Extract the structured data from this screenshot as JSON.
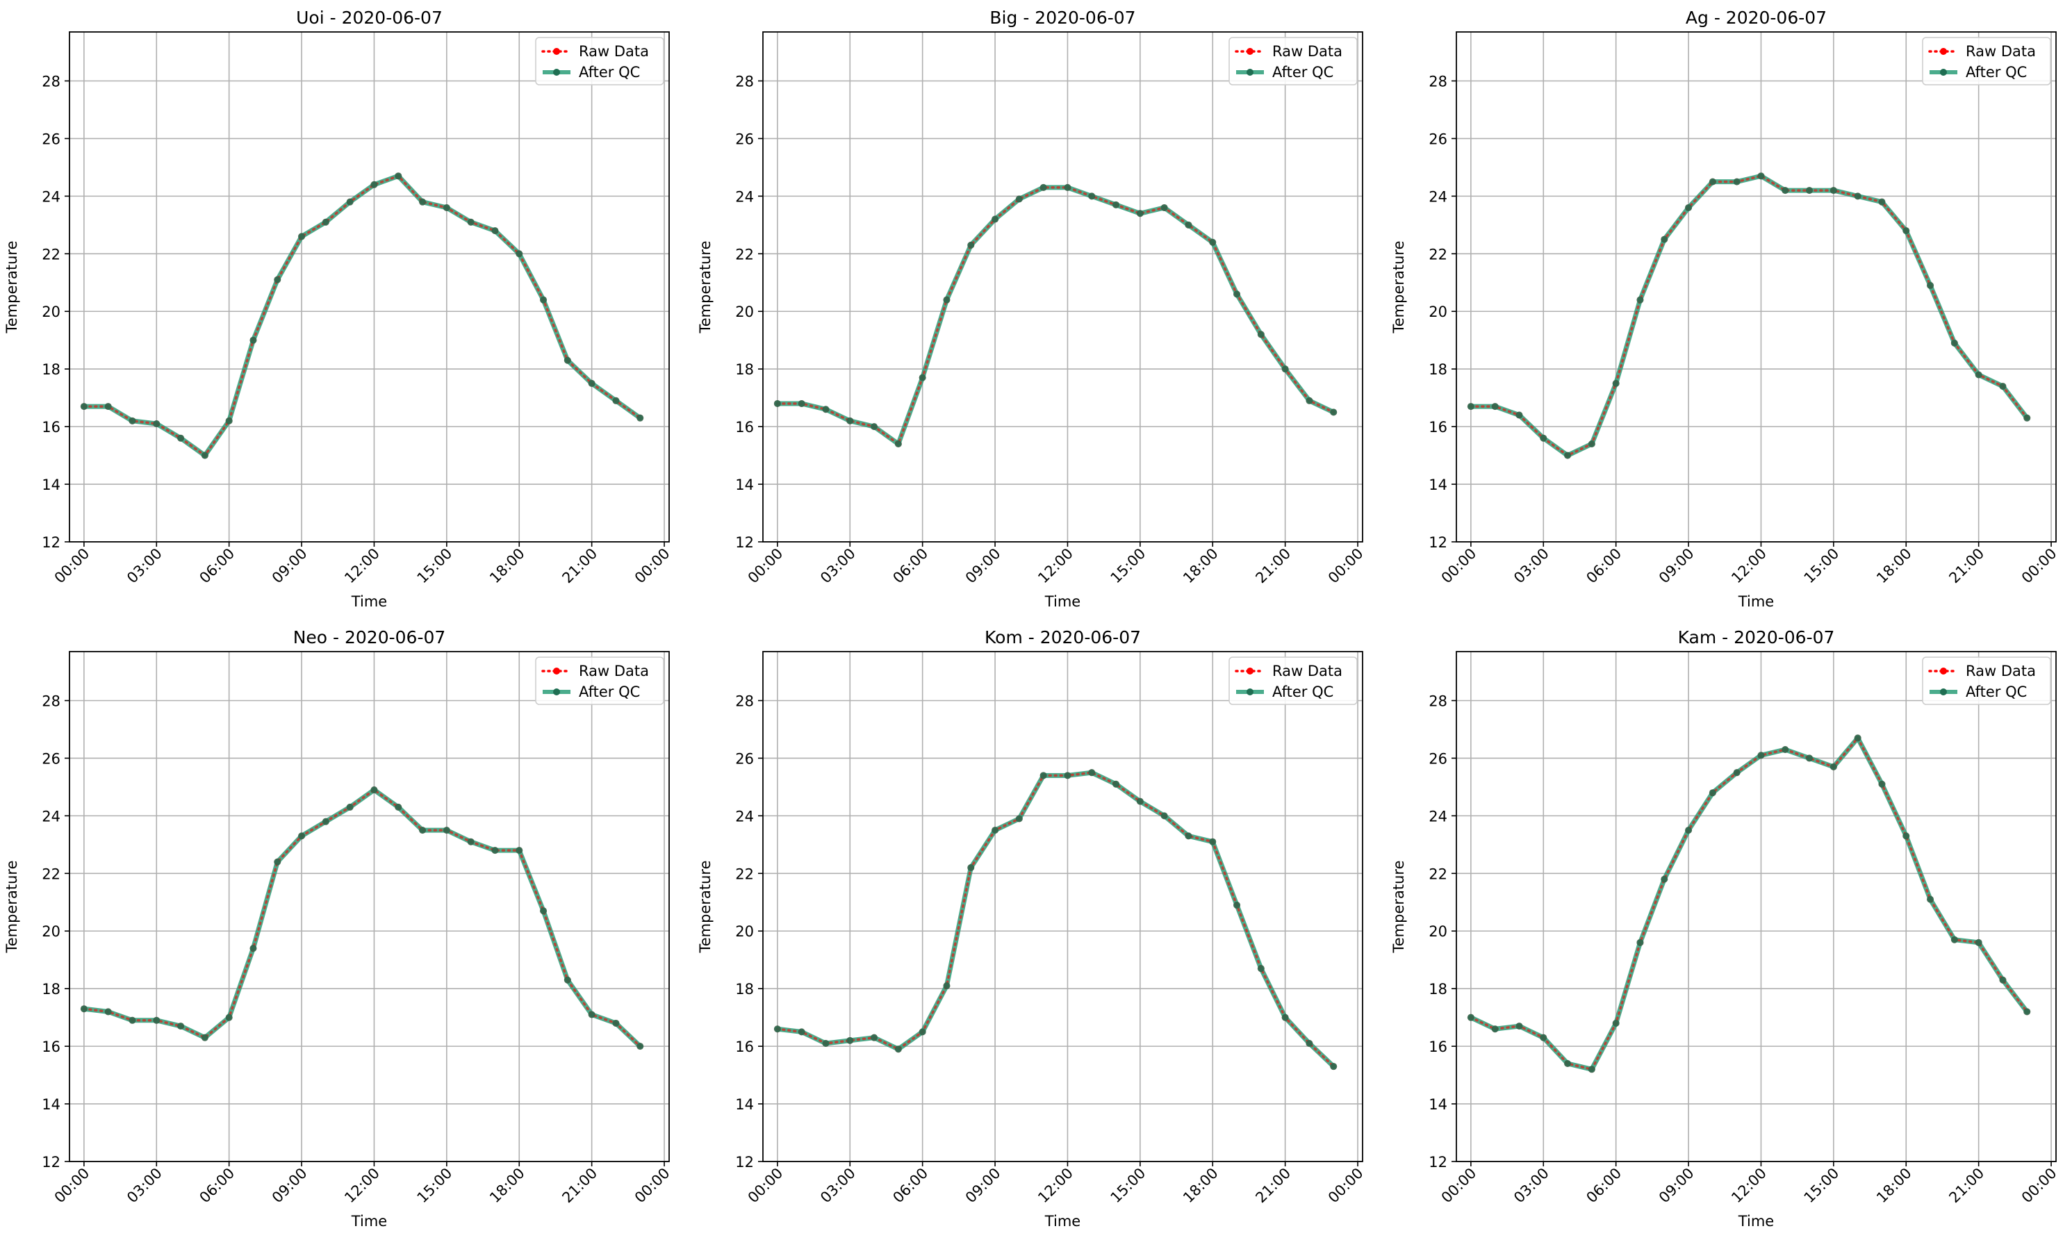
{
  "chart_data": [
    {
      "type": "line",
      "title": "Uoi - 2020-06-07",
      "xlabel": "Time",
      "ylabel": "Temperature",
      "ylim": [
        12,
        29.7
      ],
      "yticks": [
        12,
        14,
        16,
        18,
        20,
        22,
        24,
        26,
        28
      ],
      "xticks": [
        "00:00",
        "03:00",
        "06:00",
        "09:00",
        "12:00",
        "15:00",
        "18:00",
        "21:00",
        "00:00"
      ],
      "grid": true,
      "legend_position": "top-right",
      "x": [
        0,
        1,
        2,
        3,
        4,
        5,
        6,
        7,
        8,
        9,
        10,
        11,
        12,
        13,
        14,
        15,
        16,
        17,
        18,
        19,
        20,
        21,
        22,
        23
      ],
      "series": [
        {
          "name": "Raw Data",
          "color": "#ff0000",
          "values": [
            16.7,
            16.7,
            16.2,
            16.1,
            15.6,
            15.0,
            16.2,
            19.0,
            21.1,
            22.6,
            23.1,
            23.8,
            24.4,
            24.7,
            23.8,
            23.6,
            23.1,
            22.8,
            22.0,
            20.4,
            18.3,
            17.5,
            16.9,
            16.3
          ]
        },
        {
          "name": "After QC",
          "color": "#2a9d78",
          "values": [
            16.7,
            16.7,
            16.2,
            16.1,
            15.6,
            15.0,
            16.2,
            19.0,
            21.1,
            22.6,
            23.1,
            23.8,
            24.4,
            24.7,
            23.8,
            23.6,
            23.1,
            22.8,
            22.0,
            20.4,
            18.3,
            17.5,
            16.9,
            16.3
          ]
        }
      ]
    },
    {
      "type": "line",
      "title": "Big - 2020-06-07",
      "xlabel": "Time",
      "ylabel": "Temperature",
      "ylim": [
        12,
        29.7
      ],
      "yticks": [
        12,
        14,
        16,
        18,
        20,
        22,
        24,
        26,
        28
      ],
      "xticks": [
        "00:00",
        "03:00",
        "06:00",
        "09:00",
        "12:00",
        "15:00",
        "18:00",
        "21:00",
        "00:00"
      ],
      "grid": true,
      "legend_position": "top-right",
      "x": [
        0,
        1,
        2,
        3,
        4,
        5,
        6,
        7,
        8,
        9,
        10,
        11,
        12,
        13,
        14,
        15,
        16,
        17,
        18,
        19,
        20,
        21,
        22,
        23
      ],
      "series": [
        {
          "name": "Raw Data",
          "color": "#ff0000",
          "values": [
            16.8,
            16.8,
            16.6,
            16.2,
            16.0,
            15.4,
            17.7,
            20.4,
            22.3,
            23.2,
            23.9,
            24.3,
            24.3,
            24.0,
            23.7,
            23.4,
            23.6,
            23.0,
            22.4,
            20.6,
            19.2,
            18.0,
            16.9,
            16.5
          ]
        },
        {
          "name": "After QC",
          "color": "#2a9d78",
          "values": [
            16.8,
            16.8,
            16.6,
            16.2,
            16.0,
            15.4,
            17.7,
            20.4,
            22.3,
            23.2,
            23.9,
            24.3,
            24.3,
            24.0,
            23.7,
            23.4,
            23.6,
            23.0,
            22.4,
            20.6,
            19.2,
            18.0,
            16.9,
            16.5
          ]
        }
      ]
    },
    {
      "type": "line",
      "title": "Ag - 2020-06-07",
      "xlabel": "Time",
      "ylabel": "Temperature",
      "ylim": [
        12,
        29.7
      ],
      "yticks": [
        12,
        14,
        16,
        18,
        20,
        22,
        24,
        26,
        28
      ],
      "xticks": [
        "00:00",
        "03:00",
        "06:00",
        "09:00",
        "12:00",
        "15:00",
        "18:00",
        "21:00",
        "00:00"
      ],
      "grid": true,
      "legend_position": "top-right",
      "x": [
        0,
        1,
        2,
        3,
        4,
        5,
        6,
        7,
        8,
        9,
        10,
        11,
        12,
        13,
        14,
        15,
        16,
        17,
        18,
        19,
        20,
        21,
        22,
        23
      ],
      "series": [
        {
          "name": "Raw Data",
          "color": "#ff0000",
          "values": [
            16.7,
            16.7,
            16.4,
            15.6,
            15.0,
            15.4,
            17.5,
            20.4,
            22.5,
            23.6,
            24.5,
            24.5,
            24.7,
            24.2,
            24.2,
            24.2,
            24.0,
            23.8,
            22.8,
            20.9,
            18.9,
            17.8,
            17.4,
            16.3
          ]
        },
        {
          "name": "After QC",
          "color": "#2a9d78",
          "values": [
            16.7,
            16.7,
            16.4,
            15.6,
            15.0,
            15.4,
            17.5,
            20.4,
            22.5,
            23.6,
            24.5,
            24.5,
            24.7,
            24.2,
            24.2,
            24.2,
            24.0,
            23.8,
            22.8,
            20.9,
            18.9,
            17.8,
            17.4,
            16.3
          ]
        }
      ]
    },
    {
      "type": "line",
      "title": "Neo - 2020-06-07",
      "xlabel": "Time",
      "ylabel": "Temperature",
      "ylim": [
        12,
        29.7
      ],
      "yticks": [
        12,
        14,
        16,
        18,
        20,
        22,
        24,
        26,
        28
      ],
      "xticks": [
        "00:00",
        "03:00",
        "06:00",
        "09:00",
        "12:00",
        "15:00",
        "18:00",
        "21:00",
        "00:00"
      ],
      "grid": true,
      "legend_position": "top-right",
      "x": [
        0,
        1,
        2,
        3,
        4,
        5,
        6,
        7,
        8,
        9,
        10,
        11,
        12,
        13,
        14,
        15,
        16,
        17,
        18,
        19,
        20,
        21,
        22,
        23
      ],
      "series": [
        {
          "name": "Raw Data",
          "color": "#ff0000",
          "values": [
            17.3,
            17.2,
            16.9,
            16.9,
            16.7,
            16.3,
            17.0,
            19.4,
            22.4,
            23.3,
            23.8,
            24.3,
            24.9,
            24.3,
            23.5,
            23.5,
            23.1,
            22.8,
            22.8,
            20.7,
            18.3,
            17.1,
            16.8,
            16.0
          ]
        },
        {
          "name": "After QC",
          "color": "#2a9d78",
          "values": [
            17.3,
            17.2,
            16.9,
            16.9,
            16.7,
            16.3,
            17.0,
            19.4,
            22.4,
            23.3,
            23.8,
            24.3,
            24.9,
            24.3,
            23.5,
            23.5,
            23.1,
            22.8,
            22.8,
            20.7,
            18.3,
            17.1,
            16.8,
            16.0
          ]
        }
      ]
    },
    {
      "type": "line",
      "title": "Kom - 2020-06-07",
      "xlabel": "Time",
      "ylabel": "Temperature",
      "ylim": [
        12,
        29.7
      ],
      "yticks": [
        12,
        14,
        16,
        18,
        20,
        22,
        24,
        26,
        28
      ],
      "xticks": [
        "00:00",
        "03:00",
        "06:00",
        "09:00",
        "12:00",
        "15:00",
        "18:00",
        "21:00",
        "00:00"
      ],
      "grid": true,
      "legend_position": "top-right",
      "x": [
        0,
        1,
        2,
        3,
        4,
        5,
        6,
        7,
        8,
        9,
        10,
        11,
        12,
        13,
        14,
        15,
        16,
        17,
        18,
        19,
        20,
        21,
        22,
        23
      ],
      "series": [
        {
          "name": "Raw Data",
          "color": "#ff0000",
          "values": [
            16.6,
            16.5,
            16.1,
            16.2,
            16.3,
            15.9,
            16.5,
            18.1,
            22.2,
            23.5,
            23.9,
            25.4,
            25.4,
            25.5,
            25.1,
            24.5,
            24.0,
            23.3,
            23.1,
            20.9,
            18.7,
            17.0,
            16.1,
            15.3
          ]
        },
        {
          "name": "After QC",
          "color": "#2a9d78",
          "values": [
            16.6,
            16.5,
            16.1,
            16.2,
            16.3,
            15.9,
            16.5,
            18.1,
            22.2,
            23.5,
            23.9,
            25.4,
            25.4,
            25.5,
            25.1,
            24.5,
            24.0,
            23.3,
            23.1,
            20.9,
            18.7,
            17.0,
            16.1,
            15.3
          ]
        }
      ]
    },
    {
      "type": "line",
      "title": "Kam - 2020-06-07",
      "xlabel": "Time",
      "ylabel": "Temperature",
      "ylim": [
        12,
        29.7
      ],
      "yticks": [
        12,
        14,
        16,
        18,
        20,
        22,
        24,
        26,
        28
      ],
      "xticks": [
        "00:00",
        "03:00",
        "06:00",
        "09:00",
        "12:00",
        "15:00",
        "18:00",
        "21:00",
        "00:00"
      ],
      "grid": true,
      "legend_position": "top-right",
      "x": [
        0,
        1,
        2,
        3,
        4,
        5,
        6,
        7,
        8,
        9,
        10,
        11,
        12,
        13,
        14,
        15,
        16,
        17,
        18,
        19,
        20,
        21,
        22,
        23
      ],
      "series": [
        {
          "name": "Raw Data",
          "color": "#ff0000",
          "values": [
            17.0,
            16.6,
            16.7,
            16.3,
            15.4,
            15.2,
            16.8,
            19.6,
            21.8,
            23.5,
            24.8,
            25.5,
            26.1,
            26.3,
            26.0,
            25.7,
            26.7,
            25.1,
            23.3,
            21.1,
            19.7,
            19.6,
            18.3,
            17.2
          ]
        },
        {
          "name": "After QC",
          "color": "#2a9d78",
          "values": [
            17.0,
            16.6,
            16.7,
            16.3,
            15.4,
            15.2,
            16.8,
            19.6,
            21.8,
            23.5,
            24.8,
            25.5,
            26.1,
            26.3,
            26.0,
            25.7,
            26.7,
            25.1,
            23.3,
            21.1,
            19.7,
            19.6,
            18.3,
            17.2
          ]
        }
      ]
    }
  ]
}
